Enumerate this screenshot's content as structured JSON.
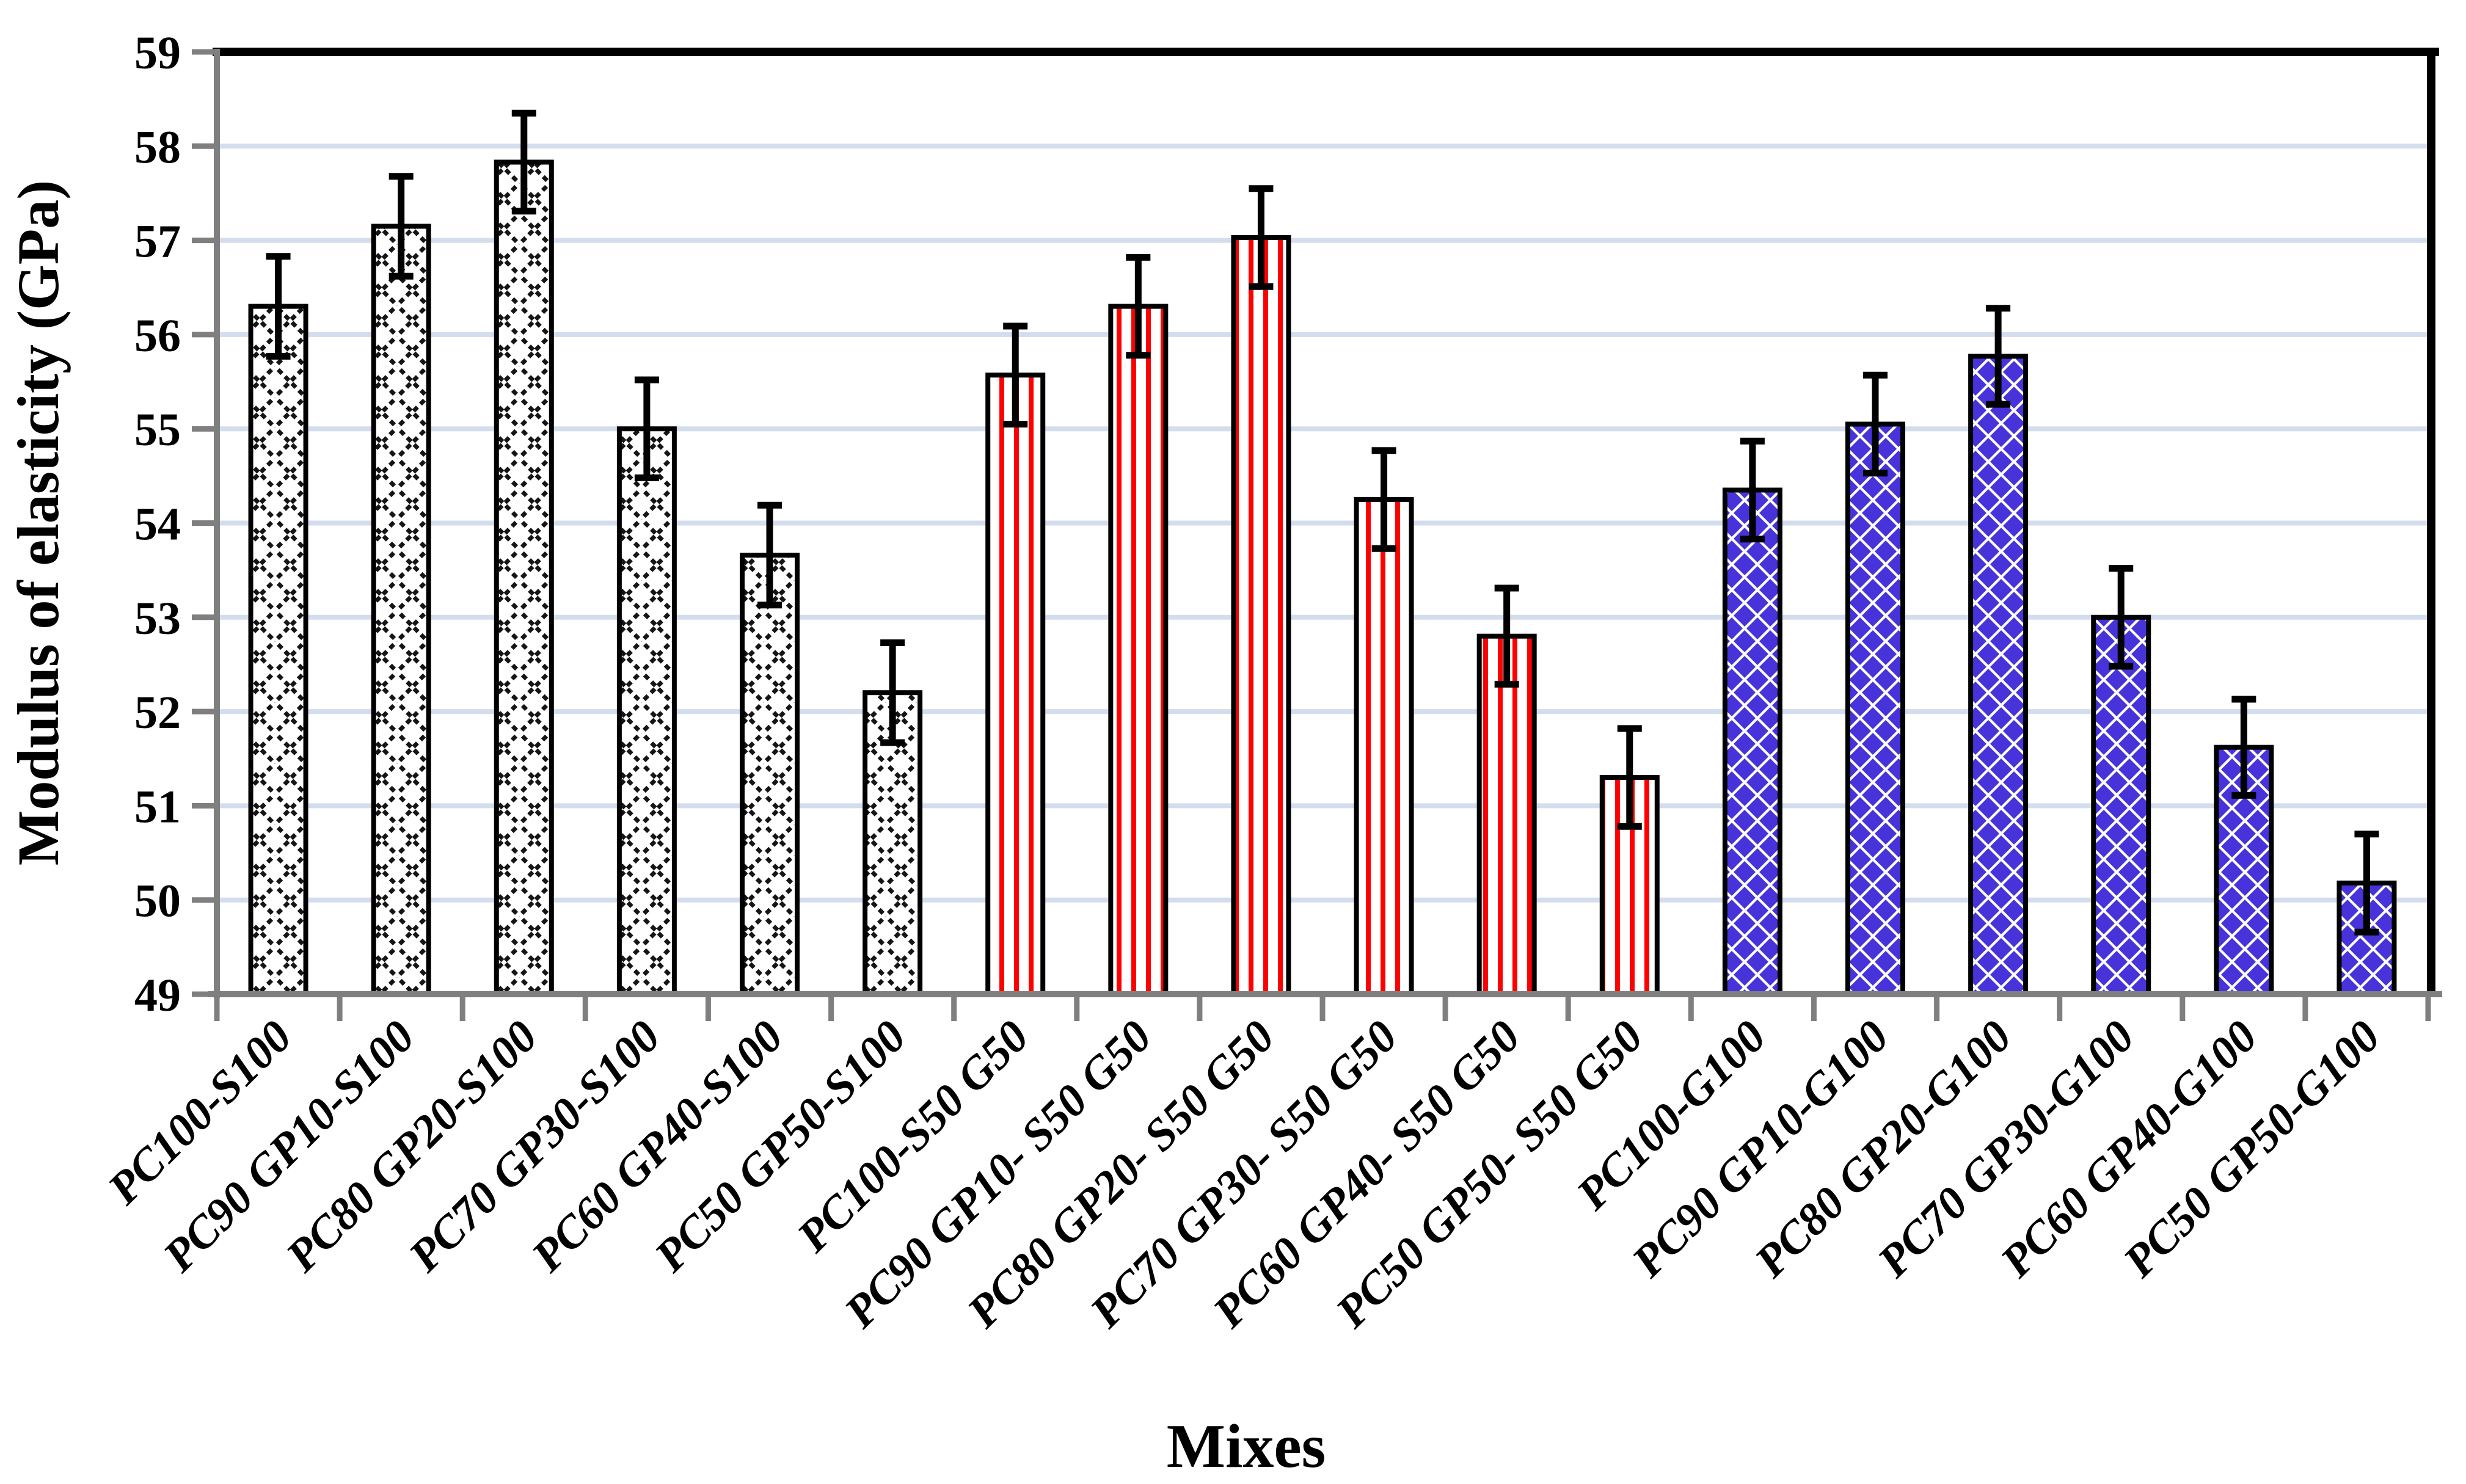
{
  "chart_data": {
    "type": "bar",
    "title": "",
    "xlabel": "Mixes",
    "ylabel": "Modulus of elasticity (GPa)",
    "ylim": [
      49,
      59
    ],
    "ytick_step": 1,
    "grid": true,
    "legend_position": "none",
    "groups": [
      {
        "pattern": "black-crosshatch",
        "applies_to": "S100 mixes"
      },
      {
        "pattern": "red-vertical-stripes",
        "applies_to": "S50 G50 mixes"
      },
      {
        "pattern": "blue-diamonds",
        "applies_to": "G100 mixes"
      }
    ],
    "points": [
      {
        "category": "PC100-S100",
        "value": 56.3,
        "error": 0.53,
        "group": 0
      },
      {
        "category": "PC90 GP10-S100",
        "value": 57.15,
        "error": 0.53,
        "group": 0
      },
      {
        "category": "PC80 GP20-S100",
        "value": 57.83,
        "error": 0.52,
        "group": 0
      },
      {
        "category": "PC70 GP30-S100",
        "value": 55.0,
        "error": 0.52,
        "group": 0
      },
      {
        "category": "PC60 GP40-S100",
        "value": 53.66,
        "error": 0.53,
        "group": 0
      },
      {
        "category": "PC50 GP50-S100",
        "value": 52.2,
        "error": 0.53,
        "group": 0
      },
      {
        "category": "PC100-S50 G50",
        "value": 55.57,
        "error": 0.52,
        "group": 1
      },
      {
        "category": "PC90 GP10- S50 G50",
        "value": 56.3,
        "error": 0.52,
        "group": 1
      },
      {
        "category": "PC80 GP20- S50 G50",
        "value": 57.03,
        "error": 0.52,
        "group": 1
      },
      {
        "category": "PC70 GP30- S50 G50",
        "value": 54.25,
        "error": 0.52,
        "group": 1
      },
      {
        "category": "PC60 GP40- S50 G50",
        "value": 52.8,
        "error": 0.51,
        "group": 1
      },
      {
        "category": "PC50 GP50- S50 G50",
        "value": 51.3,
        "error": 0.52,
        "group": 1
      },
      {
        "category": "PC100-G100",
        "value": 54.35,
        "error": 0.52,
        "group": 2
      },
      {
        "category": "PC90 GP10-G100",
        "value": 55.05,
        "error": 0.52,
        "group": 2
      },
      {
        "category": "PC80 GP20-G100",
        "value": 55.77,
        "error": 0.51,
        "group": 2
      },
      {
        "category": "PC70 GP30-G100",
        "value": 53.0,
        "error": 0.52,
        "group": 2
      },
      {
        "category": "PC60 GP40-G100",
        "value": 51.62,
        "error": 0.51,
        "group": 2
      },
      {
        "category": "PC50 GP50-G100",
        "value": 50.18,
        "error": 0.52,
        "group": 2
      }
    ]
  },
  "styles": {
    "background": "#ffffff",
    "grid_color": "#d3ddee",
    "axis_color": "#7f7f7f",
    "frame_color": "#000000",
    "bar_fill": "#ffffff",
    "bar_outline": "#000000",
    "error_bar_color": "#000000",
    "crosshatch_color": "#151515",
    "red_stripe_color": "#fe0000",
    "blue_diamond_color": "#4733d9",
    "text_color": "#000000"
  }
}
